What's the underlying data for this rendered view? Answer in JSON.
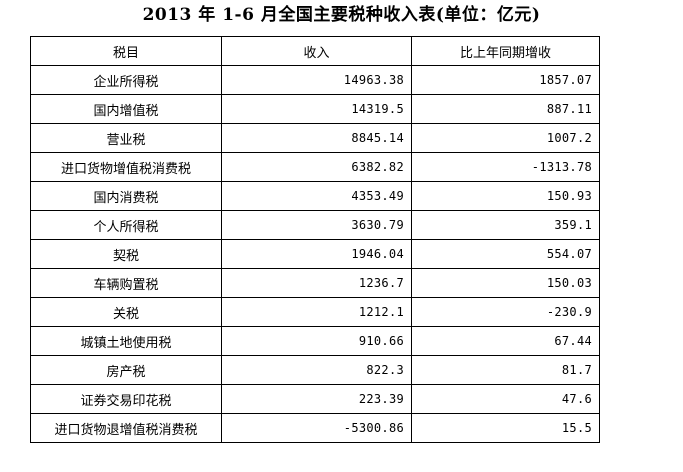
{
  "title": "2013 年 1-6 月全国主要税种收入表(单位：亿元)",
  "table": {
    "headers": [
      "税目",
      "收入",
      "比上年同期增收"
    ],
    "rows": [
      {
        "name": "企业所得税",
        "income": "14963.38",
        "increase": "1857.07"
      },
      {
        "name": "国内增值税",
        "income": "14319.5",
        "increase": "887.11"
      },
      {
        "name": "营业税",
        "income": "8845.14",
        "increase": "1007.2"
      },
      {
        "name": "进口货物增值税消费税",
        "income": "6382.82",
        "increase": "-1313.78"
      },
      {
        "name": "国内消费税",
        "income": "4353.49",
        "increase": "150.93"
      },
      {
        "name": "个人所得税",
        "income": "3630.79",
        "increase": "359.1"
      },
      {
        "name": "契税",
        "income": "1946.04",
        "increase": "554.07"
      },
      {
        "name": "车辆购置税",
        "income": "1236.7",
        "increase": "150.03"
      },
      {
        "name": "关税",
        "income": "1212.1",
        "increase": "-230.9"
      },
      {
        "name": "城镇土地使用税",
        "income": "910.66",
        "increase": "67.44"
      },
      {
        "name": "房产税",
        "income": "822.3",
        "increase": "81.7"
      },
      {
        "name": "证券交易印花税",
        "income": "223.39",
        "increase": "47.6"
      },
      {
        "name": "进口货物退增值税消费税",
        "income": "-5300.86",
        "increase": "15.5"
      }
    ]
  }
}
